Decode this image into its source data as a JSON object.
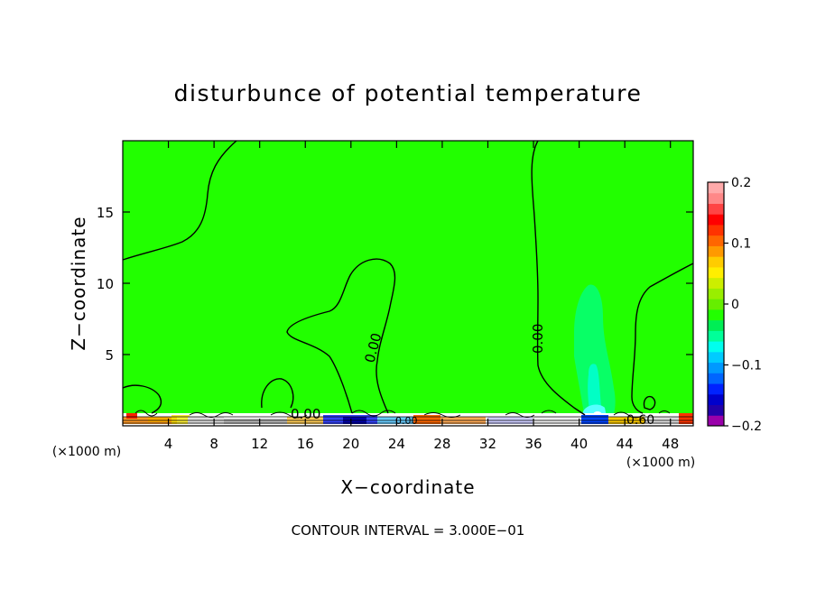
{
  "chart_data": {
    "type": "heatmap",
    "title": "disturbunce of potential temperature",
    "xlabel": "X−coordinate",
    "ylabel": "Z−coordinate",
    "x_unit": "(×1000 m)",
    "y_unit": "(×1000 m)",
    "xlim": [
      0,
      50
    ],
    "ylim": [
      0,
      20
    ],
    "xticks": [
      "4",
      "8",
      "12",
      "16",
      "20",
      "24",
      "28",
      "32",
      "36",
      "40",
      "44",
      "48"
    ],
    "yticks": [
      "5",
      "10",
      "15"
    ],
    "colorbar": {
      "min": -0.2,
      "max": 0.2,
      "tick_labels": [
        "0.2",
        "0.1",
        "0",
        "−0.1",
        "−0.2"
      ],
      "colors": [
        "#9900aa",
        "#2200aa",
        "#0000cc",
        "#0022ff",
        "#0066ff",
        "#0099ff",
        "#00ccff",
        "#00ffee",
        "#00ff99",
        "#00ee55",
        "#22ff00",
        "#66ee00",
        "#99ee00",
        "#ccee00",
        "#ffee00",
        "#ffcc00",
        "#ff9900",
        "#ff6600",
        "#ff3300",
        "#ff0000",
        "#ff4444",
        "#ff8888",
        "#ffaaaa"
      ]
    },
    "contour_labels": [
      "0.00",
      "0.00",
      "0.00",
      "0.00",
      "0.60"
    ],
    "footer": "CONTOUR INTERVAL = 3.000E−01",
    "background_color": "#22ff00"
  }
}
